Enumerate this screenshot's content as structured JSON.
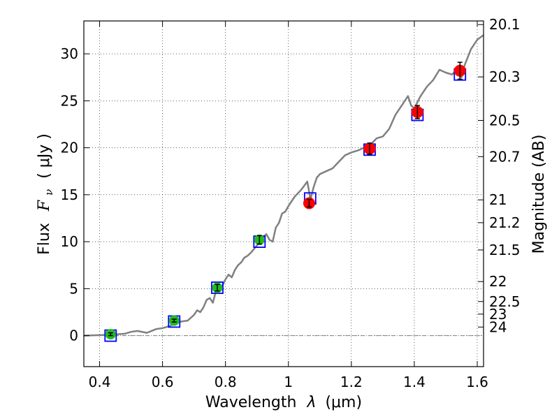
{
  "chart_data": {
    "type": "scatter",
    "title": "",
    "xlabel_prefix": "Wavelength",
    "xlabel_symbol": "λ",
    "xlabel_unit": "(μm)",
    "ylabel_prefix": "Flux",
    "ylabel_symbol": "F",
    "ylabel_sub": "ν",
    "ylabel_unit": "( μJy )",
    "y2label": "Magnitude (AB)",
    "xlim": [
      0.35,
      1.62
    ],
    "ylim": [
      -3.3,
      33.5
    ],
    "x_ticks": [
      0.4,
      0.6,
      0.8,
      1.0,
      1.2,
      1.4,
      1.6
    ],
    "x_tick_labels": [
      "0.4",
      "0.6",
      "0.8",
      "1",
      "1.2",
      "1.4",
      "1.6"
    ],
    "y_ticks": [
      0,
      5,
      10,
      15,
      20,
      25,
      30
    ],
    "y_tick_labels": [
      "0",
      "5",
      "10",
      "15",
      "20",
      "25",
      "30"
    ],
    "y2_ticks": [
      {
        "label": "20.1",
        "mag": 20.1
      },
      {
        "label": "20.3",
        "mag": 20.3
      },
      {
        "label": "20.5",
        "mag": 20.5
      },
      {
        "label": "20.7",
        "mag": 20.7
      },
      {
        "label": "21",
        "mag": 21.0
      },
      {
        "label": "21.2",
        "mag": 21.2
      },
      {
        "label": "21.5",
        "mag": 21.5
      },
      {
        "label": "22",
        "mag": 22.0
      },
      {
        "label": "22.5",
        "mag": 22.5
      },
      {
        "label": "23",
        "mag": 23.0
      },
      {
        "label": "24",
        "mag": 24.0
      }
    ],
    "grid": true,
    "colors": {
      "model": "#808080",
      "model_photometry": "#0000ff",
      "optical_points": "#22bb22",
      "nir_points": "#ff0000",
      "zero_line": "#808080"
    },
    "model_spectrum": {
      "x": [
        0.35,
        0.4,
        0.44,
        0.48,
        0.5,
        0.52,
        0.55,
        0.58,
        0.6,
        0.62,
        0.64,
        0.66,
        0.68,
        0.7,
        0.71,
        0.72,
        0.73,
        0.74,
        0.75,
        0.76,
        0.77,
        0.78,
        0.79,
        0.8,
        0.81,
        0.82,
        0.83,
        0.84,
        0.85,
        0.86,
        0.87,
        0.88,
        0.89,
        0.9,
        0.91,
        0.92,
        0.93,
        0.94,
        0.95,
        0.96,
        0.97,
        0.98,
        0.99,
        1.0,
        1.02,
        1.04,
        1.06,
        1.07,
        1.08,
        1.09,
        1.1,
        1.12,
        1.14,
        1.16,
        1.18,
        1.2,
        1.22,
        1.24,
        1.26,
        1.28,
        1.3,
        1.32,
        1.34,
        1.36,
        1.38,
        1.39,
        1.4,
        1.42,
        1.44,
        1.46,
        1.48,
        1.5,
        1.52,
        1.54,
        1.55,
        1.56,
        1.58,
        1.6,
        1.62
      ],
      "y": [
        0.0,
        0.05,
        0.1,
        0.2,
        0.4,
        0.5,
        0.3,
        0.7,
        0.8,
        1.0,
        1.3,
        1.5,
        1.6,
        2.2,
        2.7,
        2.5,
        3.0,
        3.8,
        4.0,
        3.5,
        4.8,
        5.0,
        5.3,
        6.0,
        6.5,
        6.2,
        7.0,
        7.5,
        7.8,
        8.3,
        8.5,
        8.8,
        9.2,
        9.6,
        10.0,
        10.5,
        10.8,
        10.2,
        10.0,
        11.5,
        12.0,
        13.0,
        13.2,
        13.8,
        14.8,
        15.5,
        16.4,
        14.5,
        15.8,
        16.8,
        17.2,
        17.5,
        17.8,
        18.5,
        19.2,
        19.5,
        19.7,
        20.0,
        20.3,
        21.0,
        21.2,
        22.0,
        23.5,
        24.5,
        25.5,
        24.5,
        24.2,
        25.5,
        26.5,
        27.2,
        28.3,
        28.0,
        27.8,
        28.5,
        27.5,
        28.8,
        30.5,
        31.5,
        32.0
      ]
    },
    "model_photometry": {
      "name": "model",
      "x": [
        0.435,
        0.637,
        0.774,
        0.908,
        1.069,
        1.258,
        1.41,
        1.545
      ],
      "y": [
        0.0,
        1.5,
        5.1,
        10.0,
        14.6,
        19.8,
        23.5,
        27.8
      ]
    },
    "optical_points": {
      "x": [
        0.435,
        0.637,
        0.774,
        0.908
      ],
      "y": [
        0.15,
        1.6,
        5.1,
        10.2
      ],
      "yerr": [
        0.15,
        0.15,
        0.35,
        0.45
      ]
    },
    "nir_points": {
      "x": [
        1.066,
        1.258,
        1.41,
        1.545
      ],
      "y": [
        14.1,
        19.9,
        23.8,
        28.2
      ],
      "yerr": [
        0.4,
        0.6,
        0.7,
        0.9
      ]
    }
  }
}
